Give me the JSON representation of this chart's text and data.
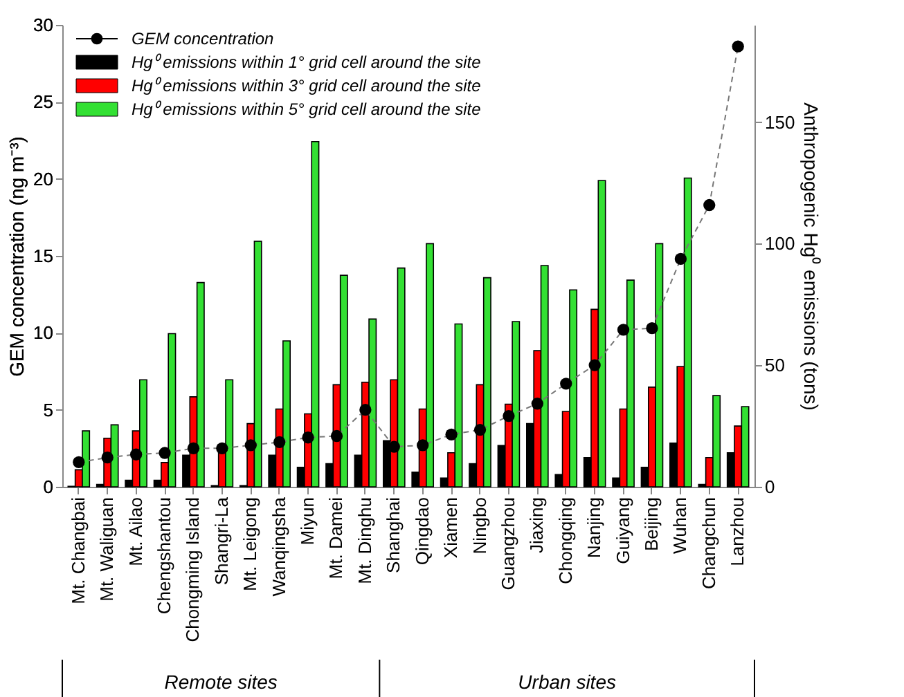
{
  "chart_data": {
    "type": "bar",
    "ylabel": "GEM concentration (ng m⁻³)",
    "y2label": "Anthropogenic Hg⁰ emissions (tons)",
    "categories": [
      "Mt. Changbai",
      "Mt. Waliguan",
      "Mt. Ailao",
      "Chengshantou",
      "Chongming Island",
      "Shangri-La",
      "Mt. Leigong",
      "Wanqingsha",
      "Miyun",
      "Mt. Damei",
      "Mt. Dinghu",
      "Shanghai",
      "Qingdao",
      "Xiamen",
      "Ningbo",
      "Guangzhou",
      "Jiaxing",
      "Chongqing",
      "Nanjing",
      "Guiyang",
      "Beijing",
      "Wuhan",
      "Changchun",
      "Lanzhou"
    ],
    "series": [
      {
        "name": "GEM concentration",
        "type": "line",
        "color": "#000000",
        "marker": "circle",
        "line_style": "dashed",
        "values": [
          1.6,
          1.9,
          2.1,
          2.2,
          2.5,
          2.5,
          2.7,
          2.9,
          3.2,
          3.3,
          5.0,
          2.6,
          2.7,
          3.4,
          3.7,
          4.6,
          5.4,
          6.7,
          7.9,
          10.2,
          10.3,
          14.8,
          18.3,
          28.6
        ]
      },
      {
        "name": "Hg⁰ emissions within 1° grid cell around the site",
        "axis": "y2",
        "color": "#000000",
        "values": [
          0.2,
          1,
          2.7,
          2.7,
          13,
          0.5,
          0.5,
          13,
          8,
          9.5,
          13,
          19,
          6,
          3.6,
          9.5,
          17,
          26,
          5,
          12,
          3.6,
          8,
          18,
          1,
          14
        ]
      },
      {
        "name": "Hg⁰ emissions within 3° grid cell around the site",
        "axis": "y2",
        "color": "#ff0000",
        "values": [
          7,
          20,
          23,
          10,
          37,
          15,
          26,
          32,
          30,
          42,
          43,
          44,
          32,
          14,
          42,
          34,
          56,
          31,
          73,
          32,
          41,
          49.5,
          12,
          25
        ]
      },
      {
        "name": "Hg⁰ emissions within 5° grid cell around the site",
        "axis": "y2",
        "color": "#33e033",
        "values": [
          23,
          25.5,
          44,
          63,
          84,
          44,
          101,
          60,
          142,
          87,
          69,
          90,
          100,
          67,
          86,
          68,
          91,
          81,
          126,
          85,
          100,
          127,
          37.5,
          33
        ]
      }
    ],
    "ylim": [
      0,
      30
    ],
    "yticks": [
      0,
      5,
      10,
      15,
      20,
      25,
      30
    ],
    "y2lim": [
      0,
      190
    ],
    "y2ticks": [
      0,
      50,
      100,
      150
    ],
    "grid": false,
    "legend": "top left",
    "annotations": [
      "Remote sites",
      "Urban sites"
    ]
  }
}
